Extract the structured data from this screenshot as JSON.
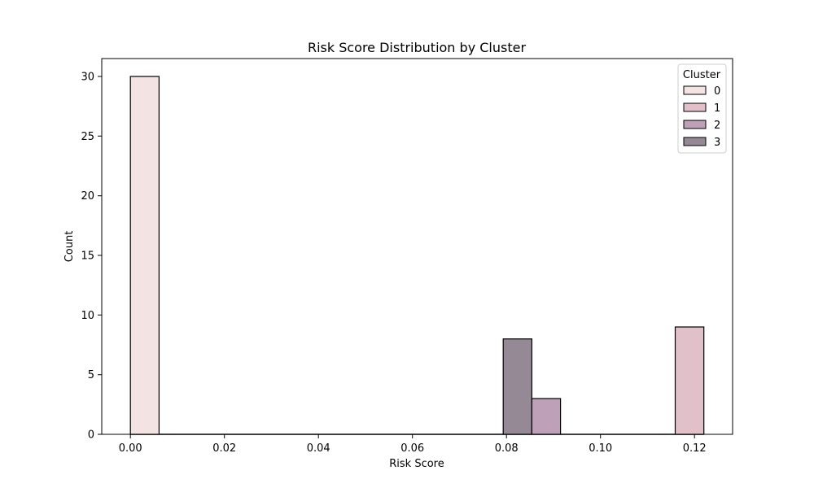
{
  "chart_data": {
    "type": "bar",
    "title": "Risk Score Distribution by Cluster",
    "xlabel": "Risk Score",
    "ylabel": "Count",
    "xlim": [
      -0.0061,
      0.1281
    ],
    "ylim": [
      0,
      31.5
    ],
    "xticks": [
      "0.00",
      "0.02",
      "0.04",
      "0.06",
      "0.08",
      "0.10",
      "0.12"
    ],
    "xtick_values": [
      0.0,
      0.02,
      0.04,
      0.06,
      0.08,
      0.1,
      0.12
    ],
    "yticks": [
      "0",
      "5",
      "10",
      "15",
      "20",
      "25",
      "30"
    ],
    "ytick_values": [
      0,
      5,
      10,
      15,
      20,
      25,
      30
    ],
    "bin_edges": [
      0.0,
      0.0061,
      0.0122,
      0.0183,
      0.0244,
      0.0305,
      0.0366,
      0.0427,
      0.0488,
      0.0549,
      0.061,
      0.0671,
      0.0732,
      0.0793,
      0.0854,
      0.0915,
      0.0976,
      0.1037,
      0.1098,
      0.1159,
      0.122
    ],
    "series": [
      {
        "name": "0",
        "color": "#f3e3e2",
        "bins": [
          {
            "from": 0.0,
            "to": 0.0061,
            "count": 30
          }
        ]
      },
      {
        "name": "1",
        "color": "#e2c0ca",
        "bins": [
          {
            "from": 0.1159,
            "to": 0.122,
            "count": 9
          }
        ]
      },
      {
        "name": "2",
        "color": "#bea1b8",
        "bins": [
          {
            "from": 0.0854,
            "to": 0.0915,
            "count": 3
          }
        ]
      },
      {
        "name": "3",
        "color": "#958996",
        "bins": [
          {
            "from": 0.0793,
            "to": 0.0854,
            "count": 8
          }
        ]
      }
    ],
    "legend": {
      "title": "Cluster",
      "position": "top-right"
    },
    "grid": false
  }
}
